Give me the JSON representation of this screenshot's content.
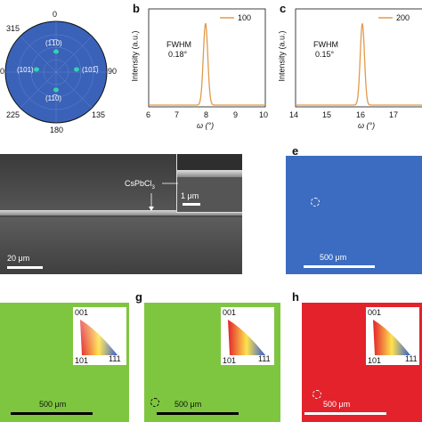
{
  "panel_a": {
    "angles": {
      "top": "0",
      "top_left": "315",
      "left": "0",
      "right": "90",
      "bottom_left": "225",
      "bottom_right": "135",
      "bottom": "180"
    },
    "poles": [
      "(1̅1̅0)",
      "(101)",
      "(101̅)",
      "(11̅0)"
    ],
    "colors": {
      "disk": "#3a62b8",
      "pole": "#35d0b3"
    }
  },
  "panel_b": {
    "letter": "b",
    "legend": "100",
    "annotation_title": "FWHM",
    "annotation_value": "0.18°",
    "ylabel": "Intensity (a.u.)",
    "xlabel": "ω (°)",
    "xticks": [
      "6",
      "7",
      "8",
      "9",
      "10"
    ]
  },
  "panel_c": {
    "letter": "c",
    "legend": "200",
    "annotation_title": "FWHM",
    "annotation_value": "0.15°",
    "ylabel": "Intensity (a.u.)",
    "xlabel": "ω (°)",
    "xticks": [
      "14",
      "15",
      "16",
      "17"
    ]
  },
  "chart_data": [
    {
      "type": "line",
      "panel": "b",
      "series": [
        {
          "name": "100",
          "peak_center": 7.95,
          "fwhm": 0.18
        }
      ],
      "xlim": [
        6,
        10
      ],
      "xlabel": "ω (°)",
      "ylabel": "Intensity (a.u.)"
    },
    {
      "type": "line",
      "panel": "c",
      "series": [
        {
          "name": "200",
          "peak_center": 16.0,
          "fwhm": 0.15
        }
      ],
      "xlim": [
        14,
        18
      ],
      "xlabel": "ω (°)",
      "ylabel": "Intensity (a.u.)"
    }
  ],
  "panel_d": {
    "label": "CsPbCl",
    "label_sub": "3",
    "inset_scale": "1 μm",
    "scale": "20 μm"
  },
  "panel_e": {
    "letter": "e",
    "scale": "500 μm",
    "color": "#3b6cc1"
  },
  "panel_f": {
    "scale": "500 μm",
    "color": "#7ec63f",
    "tri": {
      "top": "001",
      "bottom_left": "101",
      "bottom_right": "111"
    }
  },
  "panel_g": {
    "letter": "g",
    "scale": "500 μm",
    "color": "#7ec63f",
    "tri": {
      "top": "001",
      "bottom_left": "101",
      "bottom_right": "111"
    }
  },
  "panel_h": {
    "letter": "h",
    "scale": "500 μm",
    "color": "#e3222b",
    "tri": {
      "top": "001",
      "bottom_left": "101",
      "bottom_right": "111"
    }
  }
}
